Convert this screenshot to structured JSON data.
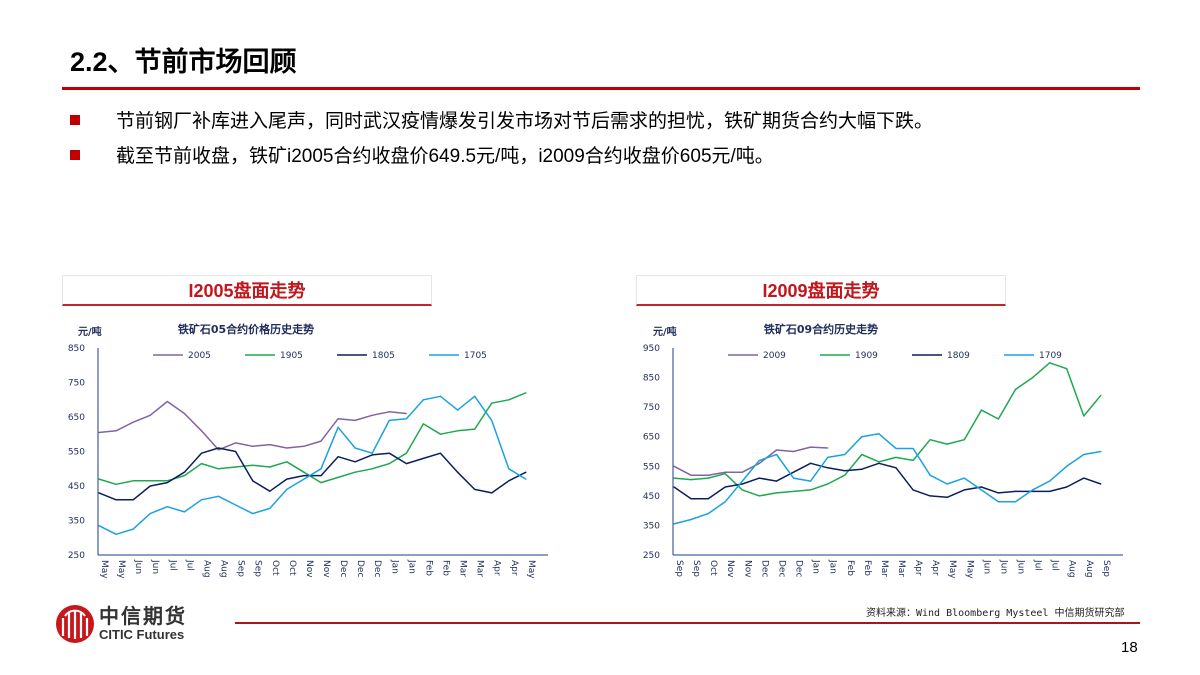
{
  "slide": {
    "title": "2.2、节前市场回顾",
    "page_number": "18",
    "bullets": [
      "节前钢厂补库进入尾声，同时武汉疫情爆发引发市场对节后需求的担忧，铁矿期货合约大幅下跌。",
      "截至节前收盘，铁矿i2005合约收盘价649.5元/吨，i2009合约收盘价605元/吨。"
    ],
    "source": "资料来源：Wind Bloomberg Mysteel 中信期货研究部",
    "logo": {
      "cn": "中信期货",
      "en": "CITIC Futures"
    },
    "accent": "#c00000"
  },
  "panels": [
    {
      "header": "I2005盘面走势"
    },
    {
      "header": "I2009盘面走势"
    }
  ],
  "chart_data": [
    {
      "type": "line",
      "title": "铁矿石05合约价格历史走势",
      "ylabel": "元/吨",
      "ylim": [
        250,
        850
      ],
      "yticks": [
        250,
        350,
        450,
        550,
        650,
        750,
        850
      ],
      "grid": false,
      "legend": "top",
      "categories": [
        "May",
        "May",
        "Jun",
        "Jun",
        "Jul",
        "Jul",
        "Aug",
        "Aug",
        "Sep",
        "Sep",
        "Oct",
        "Oct",
        "Nov",
        "Nov",
        "Dec",
        "Dec",
        "Dec",
        "Jan",
        "Jan",
        "Feb",
        "Feb",
        "Mar",
        "Mar",
        "Apr",
        "Apr",
        "May"
      ],
      "series": [
        {
          "name": "2005",
          "color": "#8064a2",
          "values": [
            605,
            610,
            635,
            655,
            695,
            660,
            610,
            555,
            575,
            565,
            570,
            560,
            565,
            580,
            645,
            640,
            655,
            665,
            660,
            null,
            null,
            null,
            null,
            null,
            null,
            null
          ]
        },
        {
          "name": "1905",
          "color": "#1fa84f",
          "values": [
            470,
            455,
            465,
            465,
            465,
            480,
            515,
            500,
            505,
            510,
            505,
            520,
            490,
            460,
            475,
            490,
            500,
            515,
            545,
            630,
            600,
            610,
            615,
            690,
            700,
            720
          ]
        },
        {
          "name": "1805",
          "color": "#0b1f5c",
          "values": [
            430,
            410,
            410,
            450,
            460,
            490,
            545,
            560,
            550,
            465,
            435,
            470,
            480,
            480,
            535,
            520,
            540,
            545,
            515,
            530,
            545,
            490,
            440,
            430,
            465,
            490
          ]
        },
        {
          "name": "1705",
          "color": "#1ba1e2",
          "values": [
            335,
            310,
            325,
            370,
            390,
            375,
            410,
            420,
            395,
            370,
            385,
            440,
            470,
            500,
            620,
            560,
            545,
            640,
            645,
            700,
            710,
            670,
            710,
            640,
            500,
            470
          ]
        }
      ]
    },
    {
      "type": "line",
      "title": "铁矿石09合约历史走势",
      "ylabel": "元/吨",
      "ylim": [
        250,
        950
      ],
      "yticks": [
        250,
        350,
        450,
        550,
        650,
        750,
        850,
        950
      ],
      "grid": false,
      "legend": "top",
      "categories": [
        "Sep",
        "Sep",
        "Oct",
        "Nov",
        "Nov",
        "Dec",
        "Dec",
        "Dec",
        "Jan",
        "Jan",
        "Feb",
        "Feb",
        "Mar",
        "Mar",
        "Apr",
        "Apr",
        "May",
        "May",
        "Jun",
        "Jun",
        "Jun",
        "Jul",
        "Jul",
        "Aug",
        "Aug",
        "Sep"
      ],
      "series": [
        {
          "name": "2009",
          "color": "#8064a2",
          "values": [
            550,
            520,
            520,
            530,
            530,
            560,
            605,
            600,
            615,
            612,
            null,
            null,
            null,
            null,
            null,
            null,
            null,
            null,
            null,
            null,
            null,
            null,
            null,
            null,
            null,
            null
          ]
        },
        {
          "name": "1909",
          "color": "#1fa84f",
          "values": [
            510,
            505,
            510,
            525,
            470,
            450,
            460,
            465,
            470,
            490,
            520,
            590,
            565,
            580,
            570,
            640,
            625,
            640,
            740,
            710,
            810,
            850,
            900,
            880,
            720,
            790
          ]
        },
        {
          "name": "1809",
          "color": "#0b1f5c",
          "values": [
            480,
            440,
            440,
            480,
            490,
            510,
            500,
            530,
            560,
            545,
            535,
            540,
            560,
            545,
            470,
            450,
            445,
            470,
            480,
            460,
            465,
            465,
            465,
            480,
            510,
            490
          ]
        },
        {
          "name": "1709",
          "color": "#1ba1e2",
          "values": [
            355,
            370,
            390,
            430,
            500,
            570,
            590,
            510,
            500,
            580,
            590,
            650,
            660,
            610,
            610,
            520,
            490,
            510,
            470,
            430,
            430,
            470,
            500,
            550,
            590,
            600
          ]
        }
      ]
    }
  ]
}
